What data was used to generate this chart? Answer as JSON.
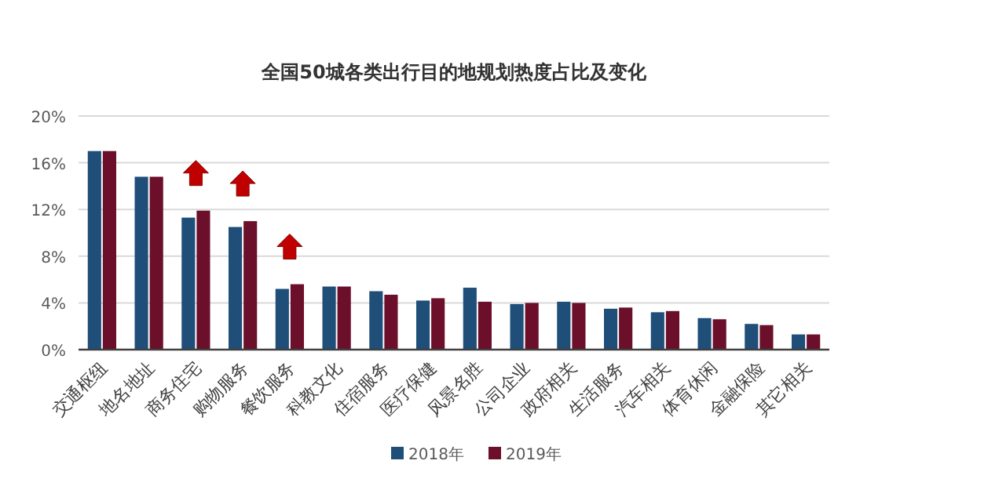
{
  "chart_data": {
    "type": "bar",
    "title": "全国50城各类出行目的地规划热度占比及变化",
    "categories": [
      "交通枢纽",
      "地名地址",
      "商务住宅",
      "购物服务",
      "餐饮服务",
      "科教文化",
      "住宿服务",
      "医疗保健",
      "风景名胜",
      "公司企业",
      "政府相关",
      "生活服务",
      "汽车相关",
      "体育休闲",
      "金融保险",
      "其它相关"
    ],
    "series": [
      {
        "name": "2018年",
        "color": "#1f4e79",
        "values": [
          17.0,
          14.8,
          11.3,
          10.5,
          5.2,
          5.4,
          5.0,
          4.2,
          5.3,
          3.9,
          4.1,
          3.5,
          3.2,
          2.7,
          2.2,
          1.3
        ]
      },
      {
        "name": "2019年",
        "color": "#6b0f2a",
        "values": [
          17.0,
          14.8,
          11.9,
          11.0,
          5.6,
          5.4,
          4.7,
          4.4,
          4.1,
          4.0,
          4.0,
          3.6,
          3.3,
          2.6,
          2.1,
          1.3
        ]
      }
    ],
    "ylim": [
      0,
      20
    ],
    "yticks": [
      {
        "value": 0,
        "label": "0%"
      },
      {
        "value": 4,
        "label": "4%"
      },
      {
        "value": 8,
        "label": "8%"
      },
      {
        "value": 12,
        "label": "12%"
      },
      {
        "value": 16,
        "label": "16%"
      },
      {
        "value": 20,
        "label": "20%"
      }
    ],
    "grid": "y",
    "legend": "bottom"
  }
}
